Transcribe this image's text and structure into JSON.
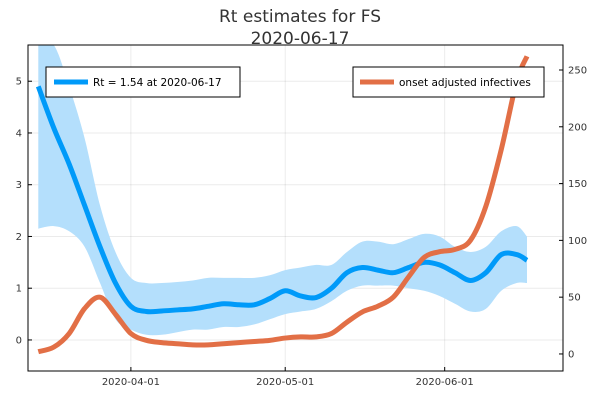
{
  "chart_data": {
    "type": "line",
    "title": "Rt estimates for FS",
    "subtitle": "2020-06-17",
    "x_axis": {
      "ticks": [
        {
          "date": "2020-04-01",
          "label": "2020-04-01"
        },
        {
          "date": "2020-05-01",
          "label": "2020-05-01"
        },
        {
          "date": "2020-06-01",
          "label": "2020-06-01"
        }
      ],
      "range": [
        "2020-03-12",
        "2020-06-24"
      ]
    },
    "y_left": {
      "range": [
        -0.6,
        5.7
      ],
      "ticks": [
        0,
        1,
        2,
        3,
        4,
        5
      ]
    },
    "y_right": {
      "range": [
        -15,
        272
      ],
      "ticks": [
        0,
        50,
        100,
        150,
        200,
        250
      ]
    },
    "grid": true,
    "legend_left": {
      "label": "Rt = 1.54 at 2020-06-17",
      "placement": "top-left"
    },
    "legend_right": {
      "label": "onset adjusted infectives",
      "placement": "top-right"
    },
    "colors": {
      "rt": "#009af9",
      "band": "#b4dffc",
      "infectives": "#e26f46"
    },
    "series": [
      {
        "name": "Rt = 1.54 at 2020-06-17",
        "axis": "left",
        "x": [
          "2020-03-14",
          "2020-03-17",
          "2020-03-20",
          "2020-03-23",
          "2020-03-26",
          "2020-03-29",
          "2020-04-01",
          "2020-04-04",
          "2020-04-07",
          "2020-04-10",
          "2020-04-13",
          "2020-04-16",
          "2020-04-19",
          "2020-04-22",
          "2020-04-25",
          "2020-04-28",
          "2020-05-01",
          "2020-05-04",
          "2020-05-07",
          "2020-05-10",
          "2020-05-13",
          "2020-05-16",
          "2020-05-19",
          "2020-05-22",
          "2020-05-25",
          "2020-05-28",
          "2020-05-31",
          "2020-06-03",
          "2020-06-06",
          "2020-06-09",
          "2020-06-12",
          "2020-06-15",
          "2020-06-17"
        ],
        "y": [
          4.9,
          4.1,
          3.4,
          2.6,
          1.8,
          1.1,
          0.65,
          0.55,
          0.56,
          0.58,
          0.6,
          0.65,
          0.7,
          0.68,
          0.68,
          0.8,
          0.95,
          0.85,
          0.82,
          1.0,
          1.3,
          1.4,
          1.35,
          1.3,
          1.4,
          1.5,
          1.45,
          1.3,
          1.15,
          1.3,
          1.65,
          1.65,
          1.54
        ],
        "lower": [
          2.15,
          2.2,
          2.1,
          1.8,
          1.1,
          0.4,
          0.2,
          0.1,
          0.1,
          0.15,
          0.2,
          0.2,
          0.25,
          0.25,
          0.3,
          0.4,
          0.5,
          0.55,
          0.6,
          0.75,
          0.95,
          1.05,
          1.05,
          1.05,
          1.0,
          0.95,
          0.85,
          0.7,
          0.55,
          0.6,
          0.95,
          1.1,
          1.1
        ]
      },
      {
        "name": "Rt 95% band upper",
        "axis": "left",
        "x": [
          "2020-03-14",
          "2020-03-17",
          "2020-03-20",
          "2020-03-23",
          "2020-03-26",
          "2020-03-29",
          "2020-04-01",
          "2020-04-04",
          "2020-04-07",
          "2020-04-10",
          "2020-04-13",
          "2020-04-16",
          "2020-04-19",
          "2020-04-22",
          "2020-04-25",
          "2020-04-28",
          "2020-05-01",
          "2020-05-04",
          "2020-05-07",
          "2020-05-10",
          "2020-05-13",
          "2020-05-16",
          "2020-05-19",
          "2020-05-22",
          "2020-05-25",
          "2020-05-28",
          "2020-05-31",
          "2020-06-03",
          "2020-06-06",
          "2020-06-09",
          "2020-06-12",
          "2020-06-15",
          "2020-06-17"
        ],
        "y": [
          5.7,
          5.7,
          4.9,
          3.9,
          2.6,
          1.7,
          1.2,
          1.1,
          1.1,
          1.12,
          1.15,
          1.2,
          1.2,
          1.2,
          1.2,
          1.25,
          1.35,
          1.4,
          1.45,
          1.45,
          1.7,
          1.9,
          1.9,
          1.85,
          1.95,
          2.05,
          2.0,
          1.8,
          1.7,
          1.8,
          2.1,
          2.2,
          2.0
        ]
      },
      {
        "name": "onset adjusted infectives",
        "axis": "right",
        "x": [
          "2020-03-14",
          "2020-03-17",
          "2020-03-20",
          "2020-03-23",
          "2020-03-26",
          "2020-03-29",
          "2020-04-01",
          "2020-04-04",
          "2020-04-07",
          "2020-04-10",
          "2020-04-13",
          "2020-04-16",
          "2020-04-19",
          "2020-04-22",
          "2020-04-25",
          "2020-04-28",
          "2020-05-01",
          "2020-05-04",
          "2020-05-07",
          "2020-05-10",
          "2020-05-13",
          "2020-05-16",
          "2020-05-19",
          "2020-05-22",
          "2020-05-25",
          "2020-05-28",
          "2020-05-31",
          "2020-06-03",
          "2020-06-06",
          "2020-06-09",
          "2020-06-12",
          "2020-06-15",
          "2020-06-17"
        ],
        "y": [
          2,
          6,
          18,
          40,
          50,
          35,
          18,
          12,
          10,
          9,
          8,
          8,
          9,
          10,
          11,
          12,
          14,
          15,
          15,
          18,
          28,
          37,
          42,
          50,
          68,
          85,
          90,
          92,
          100,
          130,
          180,
          240,
          262
        ]
      }
    ]
  }
}
